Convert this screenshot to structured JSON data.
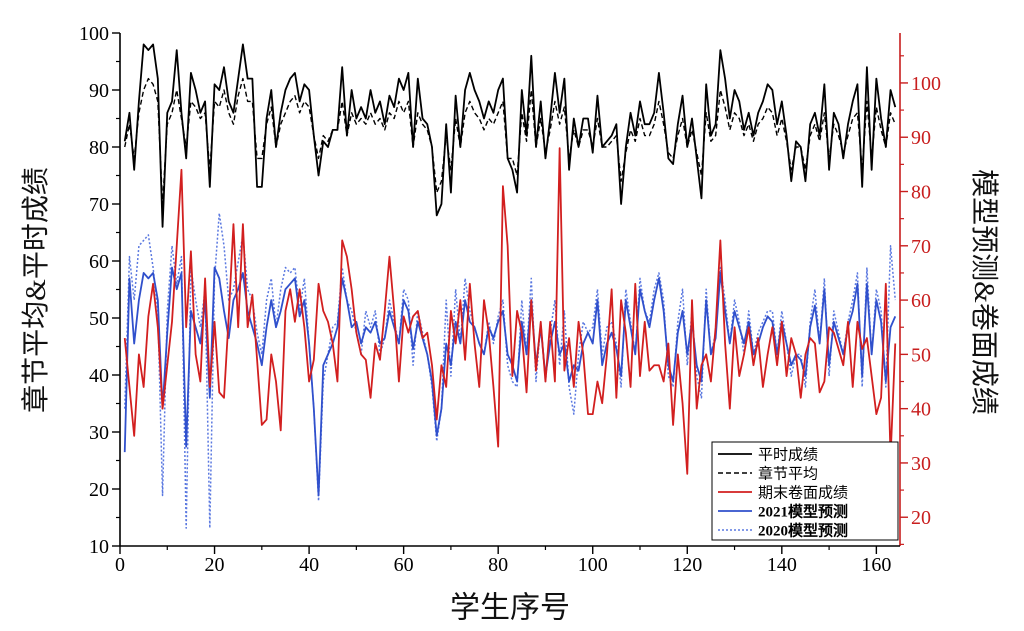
{
  "chart_data": {
    "type": "line",
    "xlabel": "学生序号",
    "ylabel_left": "章节平均&平时成绩",
    "ylabel_right": "模型预测&卷面成绩",
    "xlim": [
      0,
      165
    ],
    "xticks": [
      0,
      20,
      40,
      60,
      80,
      100,
      120,
      140,
      160
    ],
    "ylim_left": [
      10,
      100
    ],
    "yticks_left": [
      10,
      20,
      30,
      40,
      50,
      60,
      70,
      80,
      90,
      100
    ],
    "ylim_right": [
      14.7,
      109.2
    ],
    "yticks_right": [
      20,
      30,
      40,
      50,
      60,
      70,
      80,
      90,
      100
    ],
    "axis_colors": {
      "bottom": "#000000",
      "left": "#000000",
      "right": "#c81e1e"
    },
    "grid": false,
    "legend_position": "bottom-right",
    "x": [
      1,
      2,
      3,
      4,
      5,
      6,
      7,
      8,
      9,
      10,
      11,
      12,
      13,
      14,
      15,
      16,
      17,
      18,
      19,
      20,
      21,
      22,
      23,
      24,
      25,
      26,
      27,
      28,
      29,
      30,
      31,
      32,
      33,
      34,
      35,
      36,
      37,
      38,
      39,
      40,
      41,
      42,
      43,
      44,
      45,
      46,
      47,
      48,
      49,
      50,
      51,
      52,
      53,
      54,
      55,
      56,
      57,
      58,
      59,
      60,
      61,
      62,
      63,
      64,
      65,
      66,
      67,
      68,
      69,
      70,
      71,
      72,
      73,
      74,
      75,
      76,
      77,
      78,
      79,
      80,
      81,
      82,
      83,
      84,
      85,
      86,
      87,
      88,
      89,
      90,
      91,
      92,
      93,
      94,
      95,
      96,
      97,
      98,
      99,
      100,
      101,
      102,
      103,
      104,
      105,
      106,
      107,
      108,
      109,
      110,
      111,
      112,
      113,
      114,
      115,
      116,
      117,
      118,
      119,
      120,
      121,
      122,
      123,
      124,
      125,
      126,
      127,
      128,
      129,
      130,
      131,
      132,
      133,
      134,
      135,
      136,
      137,
      138,
      139,
      140,
      141,
      142,
      143,
      144,
      145,
      146,
      147,
      148,
      149,
      150,
      151,
      152,
      153,
      154,
      155,
      156,
      157,
      158,
      159,
      160,
      161,
      162,
      163,
      164
    ],
    "series": [
      {
        "name": "平时成绩",
        "axis": "left",
        "color": "#000000",
        "line_style": "solid",
        "values": [
          81,
          86,
          76,
          88,
          98,
          97,
          98,
          92,
          66,
          86,
          88,
          97,
          86,
          78,
          93,
          90,
          86,
          88,
          73,
          91,
          90,
          94,
          88,
          86,
          92,
          98,
          92,
          92,
          73,
          73,
          85,
          90,
          80,
          86,
          90,
          92,
          93,
          88,
          91,
          90,
          82,
          75,
          81,
          80,
          83,
          83,
          94,
          82,
          90,
          85,
          87,
          85,
          90,
          86,
          88,
          84,
          89,
          87,
          92,
          90,
          93,
          80,
          92,
          85,
          84,
          80,
          68,
          70,
          84,
          72,
          89,
          80,
          90,
          93,
          90,
          88,
          85,
          88,
          86,
          90,
          92,
          78,
          76,
          72,
          90,
          82,
          96,
          80,
          88,
          78,
          85,
          93,
          86,
          92,
          76,
          85,
          80,
          85,
          85,
          79,
          89,
          80,
          81,
          82,
          84,
          70,
          80,
          86,
          82,
          88,
          84,
          84,
          86,
          93,
          86,
          78,
          77,
          84,
          89,
          80,
          85,
          78,
          71,
          91,
          82,
          84,
          97,
          92,
          85,
          90,
          88,
          83,
          86,
          82,
          86,
          88,
          91,
          90,
          84,
          88,
          82,
          74,
          81,
          80,
          74,
          84,
          86,
          82,
          91,
          76,
          86,
          84,
          78,
          84,
          88,
          91,
          73,
          94,
          76,
          92,
          85,
          80,
          90,
          87
        ]
      },
      {
        "name": "章节平均",
        "axis": "left",
        "color": "#000000",
        "line_style": "dashed",
        "values": [
          80,
          84,
          78,
          86,
          90,
          92,
          91,
          88,
          70,
          84,
          86,
          90,
          85,
          80,
          88,
          87,
          85,
          86,
          76,
          88,
          87,
          90,
          86,
          84,
          89,
          92,
          88,
          88,
          78,
          78,
          84,
          87,
          80,
          84,
          86,
          88,
          89,
          86,
          88,
          87,
          82,
          78,
          82,
          81,
          83,
          83,
          88,
          82,
          86,
          84,
          85,
          84,
          86,
          84,
          85,
          83,
          86,
          85,
          88,
          86,
          88,
          80,
          86,
          84,
          83,
          80,
          72,
          74,
          82,
          76,
          85,
          80,
          86,
          88,
          86,
          85,
          83,
          85,
          84,
          86,
          88,
          78,
          78,
          75,
          86,
          81,
          90,
          80,
          85,
          79,
          83,
          88,
          84,
          87,
          78,
          83,
          80,
          83,
          83,
          80,
          85,
          80,
          80,
          81,
          82,
          74,
          79,
          83,
          81,
          85,
          82,
          82,
          84,
          88,
          84,
          79,
          78,
          82,
          85,
          80,
          83,
          79,
          75,
          86,
          81,
          82,
          90,
          87,
          83,
          86,
          85,
          82,
          84,
          81,
          84,
          85,
          87,
          86,
          82,
          85,
          81,
          76,
          80,
          80,
          76,
          82,
          84,
          81,
          86,
          78,
          84,
          82,
          79,
          82,
          85,
          86,
          76,
          88,
          78,
          87,
          83,
          80,
          86,
          84
        ]
      },
      {
        "name": "期末卷面成绩",
        "axis": "right",
        "color": "#d21f1f",
        "line_style": "solid",
        "values": [
          53,
          44,
          35,
          50,
          44,
          57,
          63,
          55,
          40,
          48,
          56,
          70,
          84,
          55,
          69,
          50,
          45,
          64,
          44,
          56,
          43,
          42,
          57,
          74,
          55,
          74,
          55,
          61,
          49,
          37,
          38,
          50,
          45,
          36,
          58,
          62,
          56,
          62,
          55,
          45,
          49,
          63,
          58,
          56,
          52,
          45,
          71,
          68,
          62,
          54,
          50,
          49,
          42,
          52,
          49,
          58,
          68,
          58,
          45,
          57,
          54,
          57,
          58,
          53,
          54,
          48,
          38,
          48,
          44,
          58,
          52,
          60,
          49,
          63,
          52,
          44,
          60,
          54,
          44,
          33,
          81,
          70,
          46,
          58,
          54,
          43,
          60,
          47,
          56,
          45,
          56,
          45,
          88,
          47,
          53,
          44,
          56,
          50,
          39,
          39,
          45,
          41,
          50,
          62,
          42,
          60,
          54,
          44,
          63,
          46,
          56,
          47,
          48,
          48,
          45,
          52,
          37,
          50,
          41,
          28,
          60,
          40,
          48,
          50,
          45,
          55,
          71,
          52,
          40,
          55,
          46,
          50,
          55,
          48,
          53,
          44,
          50,
          55,
          48,
          56,
          46,
          53,
          50,
          42,
          50,
          53,
          52,
          43,
          45,
          55,
          54,
          51,
          48,
          56,
          44,
          56,
          51,
          53,
          46,
          39,
          42,
          63,
          31,
          52
        ]
      },
      {
        "name": "2021模型预测",
        "axis": "right",
        "color": "#3050cc",
        "line_style": "solid",
        "values": [
          32,
          64,
          52,
          60,
          65,
          64,
          65,
          60,
          40,
          54,
          66,
          62,
          65,
          33,
          58,
          55,
          52,
          60,
          42,
          66,
          64,
          58,
          53,
          60,
          62,
          65,
          58,
          55,
          52,
          48,
          55,
          60,
          55,
          58,
          62,
          63,
          64,
          57,
          60,
          52,
          40,
          24,
          48,
          50,
          52,
          55,
          64,
          60,
          55,
          56,
          52,
          55,
          54,
          56,
          52,
          53,
          58,
          55,
          52,
          60,
          58,
          51,
          56,
          53,
          50,
          45,
          35,
          40,
          52,
          48,
          56,
          52,
          60,
          56,
          55,
          52,
          50,
          55,
          53,
          56,
          58,
          50,
          48,
          45,
          56,
          50,
          60,
          48,
          55,
          46,
          52,
          56,
          50,
          52,
          45,
          48,
          47,
          52,
          54,
          52,
          60,
          48,
          52,
          54,
          51,
          46,
          60,
          55,
          50,
          62,
          58,
          55,
          60,
          64,
          58,
          48,
          45,
          54,
          58,
          50,
          56,
          48,
          45,
          60,
          50,
          53,
          65,
          58,
          52,
          58,
          55,
          52,
          56,
          50,
          52,
          55,
          57,
          56,
          50,
          56,
          52,
          48,
          50,
          49,
          46,
          55,
          59,
          52,
          62,
          48,
          56,
          53,
          50,
          55,
          58,
          63,
          46,
          63,
          50,
          60,
          56,
          45,
          55,
          57
        ]
      },
      {
        "name": "2020模型预测",
        "axis": "right",
        "color": "#5a78e0",
        "line_style": "dotted",
        "values": [
          40,
          68,
          60,
          70,
          71,
          72,
          66,
          58,
          24,
          58,
          70,
          63,
          68,
          18,
          66,
          60,
          55,
          62,
          18,
          64,
          76,
          70,
          60,
          62,
          67,
          72,
          62,
          60,
          54,
          50,
          60,
          64,
          55,
          62,
          66,
          65,
          66,
          58,
          64,
          52,
          40,
          23,
          45,
          50,
          55,
          56,
          66,
          60,
          58,
          54,
          50,
          58,
          55,
          58,
          50,
          53,
          60,
          56,
          52,
          62,
          60,
          48,
          58,
          54,
          50,
          44,
          34,
          40,
          60,
          46,
          62,
          52,
          64,
          58,
          55,
          52,
          50,
          56,
          52,
          57,
          60,
          48,
          45,
          44,
          60,
          50,
          64,
          45,
          56,
          45,
          54,
          60,
          48,
          58,
          44,
          39,
          50,
          56,
          54,
          55,
          62,
          50,
          55,
          56,
          52,
          44,
          62,
          56,
          50,
          64,
          58,
          56,
          62,
          65,
          60,
          46,
          44,
          56,
          62,
          48,
          58,
          46,
          42,
          62,
          50,
          54,
          66,
          60,
          52,
          60,
          56,
          50,
          58,
          50,
          54,
          56,
          58,
          58,
          50,
          58,
          52,
          46,
          50,
          50,
          44,
          56,
          62,
          52,
          64,
          46,
          58,
          54,
          50,
          56,
          60,
          65,
          44,
          66,
          50,
          62,
          58,
          44,
          70,
          60
        ]
      }
    ]
  }
}
